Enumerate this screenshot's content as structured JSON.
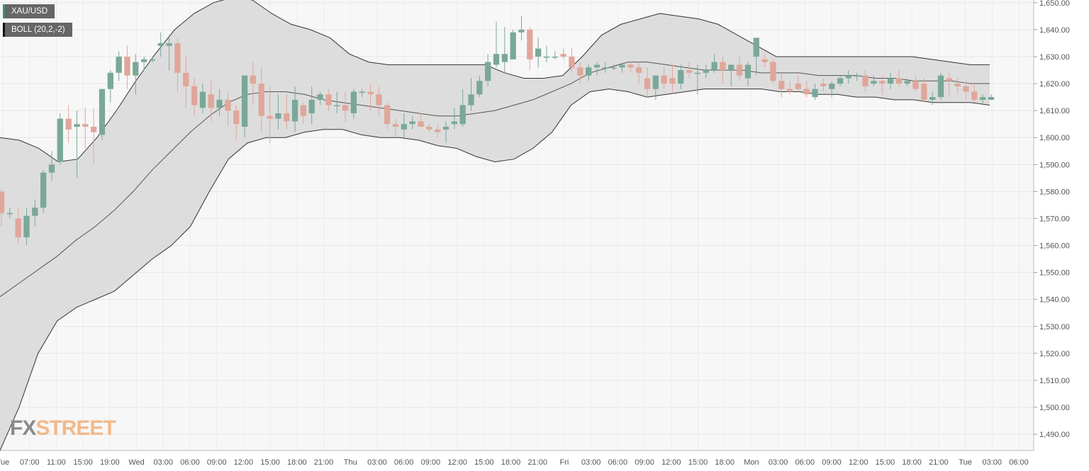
{
  "chart_data": {
    "type": "candlestick",
    "symbol": "XAU/USD",
    "indicator": "BOLL (20,2,-2)",
    "watermark": {
      "part1": "FX",
      "part2": "STREET"
    },
    "y_range": [
      1484,
      1651
    ],
    "y_ticks": [
      "1,490.00",
      "1,500.00",
      "1,510.00",
      "1,520.00",
      "1,530.00",
      "1,540.00",
      "1,550.00",
      "1,560.00",
      "1,570.00",
      "1,580.00",
      "1,590.00",
      "1,600.00",
      "1,610.00",
      "1,620.00",
      "1,630.00",
      "1,640.00",
      "1,650.00"
    ],
    "x_labels": [
      "Tue",
      "07:00",
      "11:00",
      "15:00",
      "19:00",
      "Wed",
      "03:00",
      "06:00",
      "09:00",
      "12:00",
      "15:00",
      "18:00",
      "21:00",
      "Thu",
      "03:00",
      "06:00",
      "09:00",
      "12:00",
      "15:00",
      "18:00",
      "21:00",
      "Fri",
      "03:00",
      "06:00",
      "09:00",
      "12:00",
      "15:00",
      "18:00",
      "Mon",
      "03:00",
      "06:00",
      "09:00",
      "12:00",
      "15:00",
      "18:00",
      "21:00",
      "Tue",
      "03:00",
      "06:00"
    ],
    "candles": [
      [
        1580,
        1581,
        1567,
        1572
      ],
      [
        1572,
        1574,
        1570,
        1572
      ],
      [
        1570,
        1574,
        1561,
        1563
      ],
      [
        1563,
        1574,
        1560,
        1571
      ],
      [
        1571,
        1577,
        1567,
        1574
      ],
      [
        1574,
        1588,
        1572,
        1587
      ],
      [
        1587,
        1595,
        1584,
        1590
      ],
      [
        1591,
        1609,
        1590,
        1607
      ],
      [
        1607,
        1612,
        1598,
        1603
      ],
      [
        1604,
        1610,
        1585,
        1605
      ],
      [
        1605,
        1611,
        1596,
        1604
      ],
      [
        1604,
        1611,
        1590,
        1602
      ],
      [
        1601,
        1618,
        1599,
        1618
      ],
      [
        1618,
        1625,
        1613,
        1624
      ],
      [
        1624,
        1632,
        1621,
        1630
      ],
      [
        1630,
        1634,
        1618,
        1623
      ],
      [
        1623,
        1631,
        1616,
        1628
      ],
      [
        1628,
        1630,
        1625,
        1629
      ],
      [
        1629,
        1630,
        1628,
        1629
      ],
      [
        1634,
        1639,
        1630,
        1635
      ],
      [
        1634,
        1638,
        1625,
        1635
      ],
      [
        1635,
        1637,
        1617,
        1624
      ],
      [
        1624,
        1630,
        1611,
        1619
      ],
      [
        1619,
        1622,
        1608,
        1612
      ],
      [
        1611,
        1620,
        1609,
        1617
      ],
      [
        1616,
        1621,
        1606,
        1611
      ],
      [
        1611,
        1618,
        1608,
        1614
      ],
      [
        1614,
        1617,
        1604,
        1610
      ],
      [
        1610,
        1612,
        1599,
        1605
      ],
      [
        1604,
        1623,
        1600,
        1623
      ],
      [
        1623,
        1628,
        1612,
        1620
      ],
      [
        1620,
        1626,
        1602,
        1608
      ],
      [
        1608,
        1619,
        1598,
        1607
      ],
      [
        1607,
        1616,
        1603,
        1609
      ],
      [
        1609,
        1616,
        1603,
        1606
      ],
      [
        1606,
        1619,
        1602,
        1614
      ],
      [
        1612,
        1613,
        1605,
        1608
      ],
      [
        1609,
        1619,
        1605,
        1614
      ],
      [
        1614,
        1617,
        1612,
        1616
      ],
      [
        1616,
        1618,
        1610,
        1612
      ],
      [
        1612,
        1617,
        1609,
        1612
      ],
      [
        1612,
        1617,
        1606,
        1610
      ],
      [
        1609,
        1618,
        1607,
        1617
      ],
      [
        1617,
        1618,
        1615,
        1617
      ],
      [
        1617,
        1620,
        1610,
        1616
      ],
      [
        1616,
        1619,
        1608,
        1612
      ],
      [
        1612,
        1613,
        1603,
        1605
      ],
      [
        1605,
        1607,
        1600,
        1604
      ],
      [
        1603,
        1609,
        1600,
        1605
      ],
      [
        1605,
        1608,
        1603,
        1606
      ],
      [
        1606,
        1609,
        1604,
        1604
      ],
      [
        1604,
        1605,
        1602,
        1603
      ],
      [
        1603,
        1605,
        1600,
        1602
      ],
      [
        1603,
        1606,
        1598,
        1604
      ],
      [
        1605,
        1611,
        1603,
        1606
      ],
      [
        1605,
        1618,
        1604,
        1612
      ],
      [
        1612,
        1622,
        1610,
        1616
      ],
      [
        1616,
        1623,
        1615,
        1621
      ],
      [
        1621,
        1631,
        1619,
        1628
      ],
      [
        1627,
        1643,
        1626,
        1631
      ],
      [
        1628,
        1641,
        1624,
        1631
      ],
      [
        1629,
        1640,
        1629,
        1639
      ],
      [
        1639,
        1645,
        1636,
        1640
      ],
      [
        1640,
        1641,
        1625,
        1629
      ],
      [
        1630,
        1637,
        1626,
        1633
      ],
      [
        1630,
        1634,
        1628,
        1630
      ],
      [
        1630,
        1632,
        1629,
        1630
      ],
      [
        1631,
        1633,
        1629,
        1630
      ],
      [
        1630,
        1633,
        1624,
        1626
      ],
      [
        1626,
        1628,
        1620,
        1623
      ],
      [
        1623,
        1627,
        1621,
        1626
      ],
      [
        1626,
        1628,
        1623,
        1627
      ],
      [
        1626,
        1628,
        1624,
        1626
      ],
      [
        1626,
        1627,
        1625,
        1626
      ],
      [
        1626,
        1627,
        1624,
        1627
      ],
      [
        1627,
        1628,
        1624,
        1626
      ],
      [
        1626,
        1628,
        1620,
        1624
      ],
      [
        1622,
        1626,
        1615,
        1618
      ],
      [
        1618,
        1622,
        1614,
        1623
      ],
      [
        1623,
        1626,
        1618,
        1620
      ],
      [
        1622,
        1627,
        1617,
        1620
      ],
      [
        1620,
        1627,
        1618,
        1625
      ],
      [
        1625,
        1628,
        1622,
        1624
      ],
      [
        1624,
        1627,
        1616,
        1624
      ],
      [
        1624,
        1627,
        1622,
        1625
      ],
      [
        1625,
        1631,
        1624,
        1628
      ],
      [
        1628,
        1630,
        1620,
        1625
      ],
      [
        1625,
        1627,
        1619,
        1627
      ],
      [
        1627,
        1630,
        1621,
        1623
      ],
      [
        1622,
        1628,
        1619,
        1627
      ],
      [
        1630,
        1637,
        1623,
        1637
      ],
      [
        1629,
        1631,
        1626,
        1628
      ],
      [
        1628,
        1629,
        1620,
        1621
      ],
      [
        1621,
        1624,
        1615,
        1618
      ],
      [
        1618,
        1621,
        1616,
        1617
      ],
      [
        1620,
        1623,
        1617,
        1618
      ],
      [
        1618,
        1621,
        1615,
        1616
      ],
      [
        1615,
        1620,
        1614,
        1618
      ],
      [
        1620,
        1622,
        1617,
        1619
      ],
      [
        1618,
        1621,
        1615,
        1620
      ],
      [
        1620,
        1623,
        1619,
        1622
      ],
      [
        1622,
        1625,
        1620,
        1623
      ],
      [
        1623,
        1624,
        1621,
        1623
      ],
      [
        1623,
        1625,
        1617,
        1619
      ],
      [
        1620,
        1623,
        1619,
        1621
      ],
      [
        1621,
        1623,
        1616,
        1620
      ],
      [
        1620,
        1624,
        1618,
        1622
      ],
      [
        1622,
        1625,
        1619,
        1620
      ],
      [
        1620,
        1622,
        1619,
        1621
      ],
      [
        1621,
        1623,
        1617,
        1618
      ],
      [
        1620,
        1622,
        1613,
        1614
      ],
      [
        1614,
        1617,
        1612,
        1615
      ],
      [
        1615,
        1624,
        1614,
        1623
      ],
      [
        1622,
        1624,
        1615,
        1621
      ],
      [
        1620,
        1622,
        1616,
        1619
      ],
      [
        1619,
        1621,
        1614,
        1617
      ],
      [
        1617,
        1620,
        1613,
        1614
      ],
      [
        1614,
        1616,
        1612,
        1615
      ],
      [
        1614,
        1616,
        1614,
        1615
      ]
    ],
    "boll_upper": [
      1600,
      1599,
      1596,
      1591,
      1592,
      1600,
      1610,
      1621,
      1631,
      1640,
      1646,
      1650,
      1652,
      1651,
      1646,
      1642,
      1640,
      1637,
      1631,
      1628,
      1627,
      1627,
      1627,
      1627,
      1627,
      1627,
      1624,
      1622,
      1622,
      1623,
      1630,
      1638,
      1642,
      1644,
      1646,
      1645,
      1644,
      1642,
      1638,
      1634,
      1630,
      1630,
      1630,
      1630,
      1630,
      1630,
      1630,
      1630,
      1629,
      1628,
      1627,
      1627
    ],
    "boll_mid": [
      1541,
      1546,
      1551,
      1556,
      1562,
      1567,
      1573,
      1580,
      1588,
      1595,
      1602,
      1608,
      1613,
      1616,
      1617,
      1617,
      1616,
      1614,
      1613,
      1612,
      1611,
      1610,
      1609,
      1608,
      1608,
      1609,
      1610,
      1612,
      1614,
      1617,
      1620,
      1624,
      1626,
      1628,
      1628,
      1627,
      1626,
      1625,
      1625,
      1625,
      1624,
      1624,
      1624,
      1623,
      1623,
      1623,
      1622,
      1622,
      1621,
      1621,
      1621,
      1620,
      1620
    ],
    "boll_lower": [
      1484,
      1500,
      1520,
      1532,
      1537,
      1540,
      1543,
      1549,
      1555,
      1560,
      1567,
      1580,
      1592,
      1598,
      1600,
      1600,
      1602,
      1603,
      1603,
      1601,
      1600,
      1600,
      1599,
      1597,
      1596,
      1593,
      1591,
      1592,
      1596,
      1602,
      1612,
      1617,
      1618,
      1617,
      1615,
      1616,
      1617,
      1618,
      1618,
      1618,
      1618,
      1617,
      1617,
      1616,
      1616,
      1615,
      1615,
      1614,
      1614,
      1613,
      1613,
      1613,
      1612
    ]
  }
}
